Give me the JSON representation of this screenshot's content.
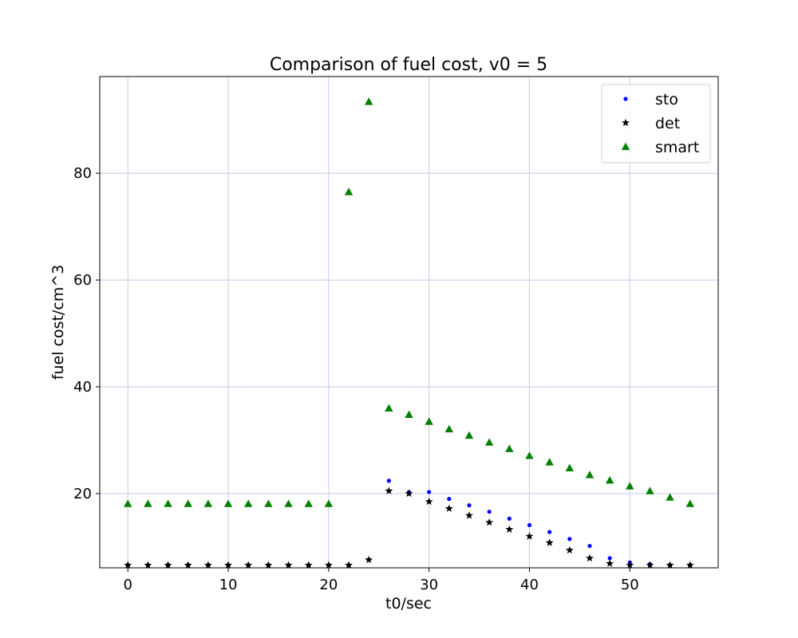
{
  "chart_data": {
    "type": "scatter",
    "title": "Comparison of fuel cost, v0 = 5",
    "xlabel": "t0/sec",
    "ylabel": "fuel cost/cm^3",
    "xlim": [
      -2.8,
      58.8
    ],
    "ylim": [
      6.1,
      98.1
    ],
    "xticks": [
      0,
      10,
      20,
      30,
      40,
      50
    ],
    "yticks": [
      20,
      40,
      60,
      80
    ],
    "grid": true,
    "grid_color": "#c8c8f0",
    "legend_position": "top-right",
    "x": [
      0,
      2,
      4,
      6,
      8,
      10,
      12,
      14,
      16,
      18,
      20,
      22,
      24,
      26,
      28,
      30,
      32,
      34,
      36,
      38,
      40,
      42,
      44,
      46,
      48,
      50,
      52,
      54,
      56
    ],
    "series": [
      {
        "name": "sto",
        "marker": "dot",
        "color": "#0000ff",
        "values": [
          6.6,
          6.6,
          6.6,
          6.6,
          6.6,
          6.6,
          6.6,
          6.6,
          6.6,
          6.6,
          6.6,
          6.6,
          7.6,
          22.4,
          20.3,
          20.3,
          19.0,
          17.8,
          16.6,
          15.3,
          14.1,
          12.8,
          11.5,
          10.2,
          7.9,
          7.1,
          6.8,
          6.6,
          6.6
        ]
      },
      {
        "name": "det",
        "marker": "star",
        "color": "#000000",
        "values": [
          6.6,
          6.6,
          6.6,
          6.6,
          6.6,
          6.6,
          6.6,
          6.6,
          6.6,
          6.6,
          6.6,
          6.6,
          7.6,
          20.5,
          20.0,
          18.5,
          17.2,
          15.9,
          14.6,
          13.3,
          12.0,
          10.8,
          9.4,
          7.9,
          6.9,
          6.6,
          6.6,
          6.6,
          6.6
        ]
      },
      {
        "name": "smart",
        "marker": "triangle",
        "color": "#008000",
        "values": [
          18.1,
          18.1,
          18.1,
          18.1,
          18.1,
          18.1,
          18.1,
          18.1,
          18.1,
          18.1,
          18.1,
          76.5,
          93.4,
          36.0,
          34.8,
          33.5,
          32.1,
          30.9,
          29.6,
          28.4,
          27.1,
          25.9,
          24.8,
          23.5,
          22.5,
          21.4,
          20.5,
          19.3,
          18.1
        ]
      }
    ]
  }
}
